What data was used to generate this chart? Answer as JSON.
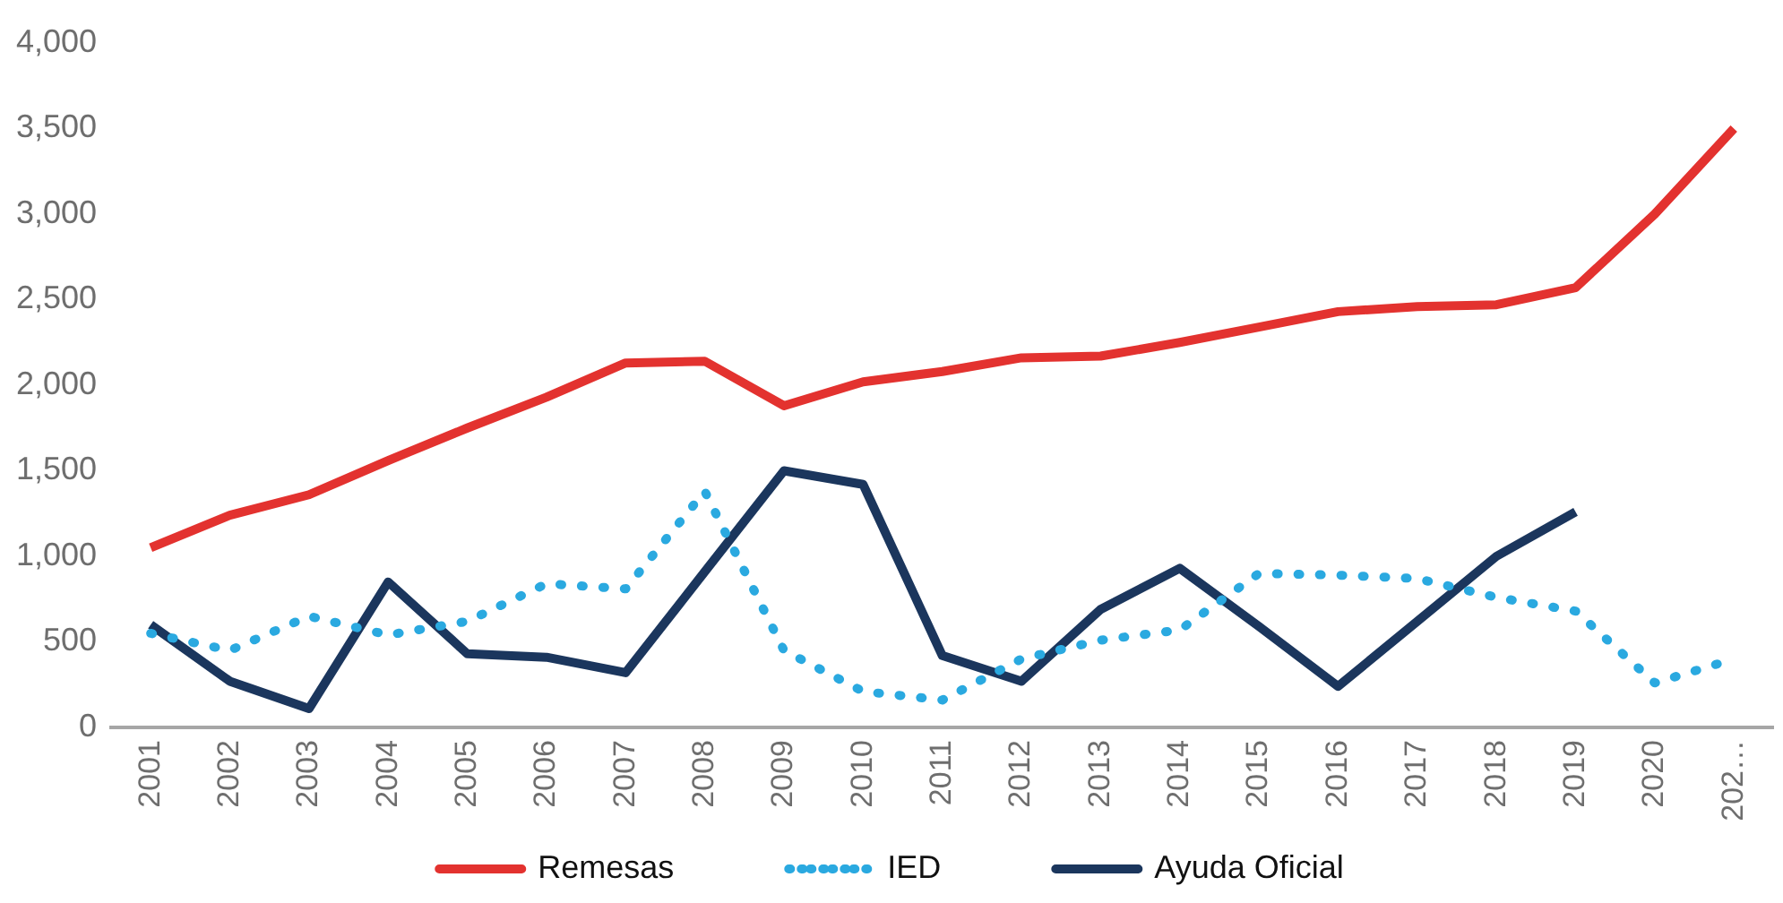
{
  "chart_data": {
    "type": "line",
    "categories": [
      "2001",
      "2002",
      "2003",
      "2004",
      "2005",
      "2006",
      "2007",
      "2008",
      "2009",
      "2010",
      "2011",
      "2012",
      "2013",
      "2014",
      "2015",
      "2016",
      "2017",
      "2018",
      "2019",
      "2020",
      "202…"
    ],
    "series": [
      {
        "name": "Remesas",
        "color": "#e3322f",
        "line_style": "solid",
        "values": [
          1050,
          1240,
          1360,
          1560,
          1750,
          1930,
          2130,
          2140,
          1880,
          2020,
          2080,
          2160,
          2170,
          2250,
          2340,
          2430,
          2460,
          2470,
          2570,
          3000,
          3500
        ]
      },
      {
        "name": "IED",
        "color": "#2aa9e0",
        "line_style": "dotted",
        "values": [
          550,
          450,
          650,
          540,
          620,
          840,
          810,
          1380,
          450,
          210,
          160,
          400,
          510,
          570,
          900,
          890,
          870,
          760,
          680,
          260,
          400
        ]
      },
      {
        "name": "Ayuda Oficial",
        "color": "#1b365d",
        "line_style": "solid",
        "values": [
          600,
          270,
          110,
          850,
          430,
          410,
          320,
          910,
          1500,
          1420,
          420,
          270,
          690,
          930,
          590,
          240,
          620,
          1000,
          1260,
          null,
          null
        ]
      }
    ],
    "ylim": [
      0,
      4000
    ],
    "yticks": [
      {
        "value": 0,
        "label": "0"
      },
      {
        "value": 500,
        "label": "500"
      },
      {
        "value": 1000,
        "label": "1,000"
      },
      {
        "value": 1500,
        "label": "1,500"
      },
      {
        "value": 2000,
        "label": "2,000"
      },
      {
        "value": 2500,
        "label": "2,500"
      },
      {
        "value": 3000,
        "label": "3,000"
      },
      {
        "value": 3500,
        "label": "3,500"
      },
      {
        "value": 4000,
        "label": "4,000"
      }
    ],
    "grid": false,
    "legend": "bottom",
    "marker": "none"
  }
}
